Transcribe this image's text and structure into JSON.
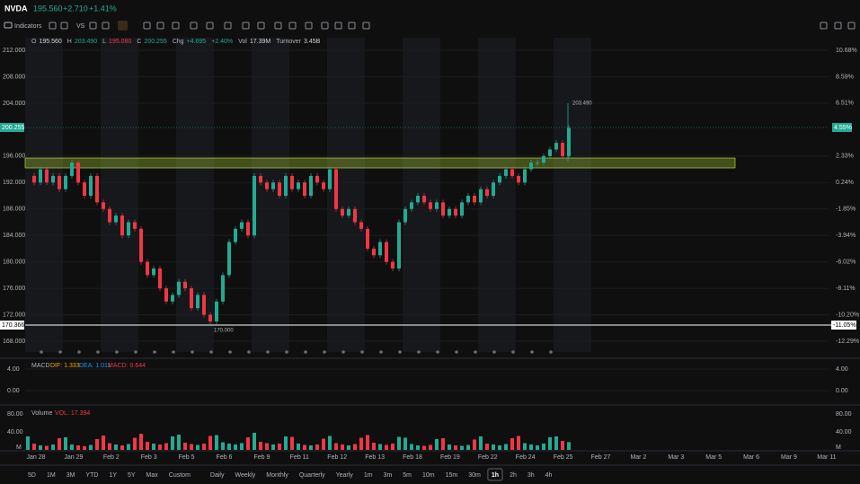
{
  "header": {
    "symbol": "NVDA",
    "price": "195.560",
    "change": "+2.710",
    "pct": "+1.41%"
  },
  "toolbar": {
    "indicators": "Indicators",
    "vs": "VS"
  },
  "info": [
    {
      "k": "O",
      "v": "195.560",
      "color": "#d1d4dc"
    },
    {
      "k": "H",
      "v": "203.490",
      "color": "#22ab94"
    },
    {
      "k": "L",
      "v": "195.080",
      "color": "#f23645"
    },
    {
      "k": "C",
      "v": "200.255",
      "color": "#22ab94"
    },
    {
      "k": "Chg",
      "v": "+4.695",
      "color": "#22ab94"
    },
    {
      "k": "",
      "v": "+2.40%",
      "color": "#22ab94"
    },
    {
      "k": "Vol",
      "v": "17.39M",
      "color": "#d1d4dc"
    },
    {
      "k": "Turnover",
      "v": "3.45B",
      "color": "#d1d4dc"
    }
  ],
  "price_tags": {
    "last": "200.255",
    "last_pct": "4.55%",
    "cross": "170.366",
    "cross_pct": "-11.05%"
  },
  "annotations": {
    "high": "203.490",
    "low": "170.000"
  },
  "chart_data": {
    "type": "candlestick",
    "up_color": "#22ab94",
    "down_color": "#f23645",
    "values": [
      193,
      192,
      194,
      192,
      193,
      191,
      193,
      195,
      192,
      190,
      193,
      189,
      188,
      186,
      187,
      184,
      186,
      185,
      180,
      178,
      179,
      176,
      174,
      175,
      177,
      176,
      173,
      175,
      172,
      171,
      174,
      178,
      183,
      185,
      186,
      184,
      193,
      192,
      191,
      192,
      190,
      193,
      191,
      192,
      190,
      193,
      192,
      191,
      194,
      188,
      187,
      188,
      186,
      185,
      182,
      181,
      183,
      180,
      179,
      186,
      188,
      189,
      190,
      189,
      188,
      189,
      187,
      188,
      187,
      189,
      190,
      189,
      191,
      190,
      192,
      193,
      194,
      193,
      192,
      194,
      195,
      195,
      196,
      197,
      198,
      196,
      200.255
    ],
    "volume": [
      30,
      14,
      10,
      9,
      12,
      26,
      28,
      12,
      10,
      8,
      11,
      24,
      32,
      15,
      12,
      10,
      13,
      27,
      36,
      18,
      14,
      12,
      15,
      30,
      34,
      16,
      13,
      11,
      14,
      31,
      33,
      17,
      14,
      12,
      15,
      28,
      38,
      18,
      15,
      12,
      14,
      30,
      29,
      14,
      11,
      10,
      12,
      25,
      31,
      15,
      12,
      10,
      13,
      27,
      33,
      16,
      13,
      11,
      14,
      29,
      27,
      13,
      10,
      9,
      11,
      24,
      26,
      12,
      10,
      9,
      11,
      23,
      30,
      14,
      12,
      10,
      13,
      26,
      31,
      15,
      12,
      10,
      14,
      28,
      30,
      20,
      17.394
    ],
    "ylim": [
      168,
      212
    ],
    "yticks": [
      {
        "value": 212,
        "label": "212.000"
      },
      {
        "value": 208,
        "label": "208.000"
      },
      {
        "value": 204,
        "label": "204.000"
      },
      {
        "value": 196,
        "label": "196.000"
      },
      {
        "value": 192,
        "label": "192.000"
      },
      {
        "value": 188,
        "label": "188.000"
      },
      {
        "value": 184,
        "label": "184.000"
      },
      {
        "value": 180,
        "label": "180.000"
      },
      {
        "value": 176,
        "label": "176.000"
      },
      {
        "value": 172,
        "label": "172.000"
      },
      {
        "value": 168,
        "label": "168.000"
      }
    ],
    "y2lim": [
      -12.29,
      10.68
    ],
    "y2ticks": [
      {
        "value": 10.68,
        "label": "10.68%"
      },
      {
        "value": 8.59,
        "label": "8.59%"
      },
      {
        "value": 6.51,
        "label": "6.51%"
      },
      {
        "value": 2.33,
        "label": "2.33%"
      },
      {
        "value": 0.24,
        "label": "0.24%"
      },
      {
        "value": -1.85,
        "label": "-1.85%"
      },
      {
        "value": -3.94,
        "label": "-3.94%"
      },
      {
        "value": -6.02,
        "label": "-6.02%"
      },
      {
        "value": -8.11,
        "label": "-8.11%"
      },
      {
        "value": -10.2,
        "label": "-10.20%"
      },
      {
        "value": -12.29,
        "label": "-12.29%"
      }
    ],
    "x_labels": [
      "Jan 28",
      "Jan 29",
      "Feb 2",
      "Feb 3",
      "Feb 5",
      "Feb 6",
      "Feb 9",
      "Feb 11",
      "Feb 12",
      "Feb 13",
      "Feb 18",
      "Feb 19",
      "Feb 22",
      "Feb 24",
      "Feb 25",
      "Feb 27",
      "Mar 2",
      "Mar 3",
      "Mar 5",
      "Mar 6",
      "Mar 9",
      "Mar 11"
    ]
  },
  "macd": {
    "title": "MACD",
    "dif": "DIF: 1.333",
    "dea": "DEA: 1.011",
    "macd": "MACD: 0.644",
    "ylim": [
      -2,
      6
    ],
    "yticks": [
      {
        "value": 4,
        "label": "4.00"
      },
      {
        "value": 0,
        "label": "0.00"
      }
    ]
  },
  "vol_panel": {
    "title": "Volume",
    "vol": "VOL: 17.394",
    "ylim": [
      0,
      80
    ],
    "yticks": [
      {
        "value": 80,
        "label": "80.00"
      },
      {
        "value": 40,
        "label": "40.00"
      }
    ],
    "unit": "M"
  },
  "range_buttons": [
    "5D",
    "1M",
    "3M",
    "YTD",
    "1Y",
    "5Y",
    "Max",
    "Custom"
  ],
  "interval_buttons": [
    "Daily",
    "Weekly",
    "Monthly",
    "Quarterly",
    "Yearly",
    "1m",
    "3m",
    "5m",
    "10m",
    "15m",
    "30m",
    "1h",
    "2h",
    "3h",
    "4h"
  ],
  "active_interval": "1h"
}
